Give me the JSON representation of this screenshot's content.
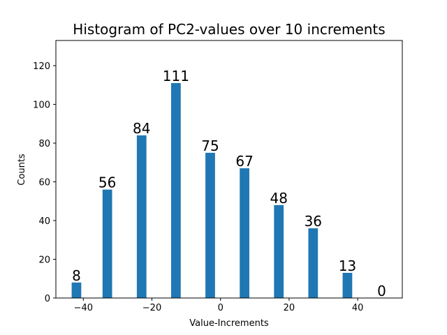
{
  "chart_data": {
    "type": "bar",
    "title": "Histogram of PC2-values over 10 increments",
    "xlabel": "Value-Increments",
    "ylabel": "Counts",
    "x": [
      -42,
      -33,
      -23,
      -13,
      -3,
      7,
      17,
      27,
      37,
      47
    ],
    "values": [
      8,
      56,
      84,
      111,
      75,
      67,
      48,
      36,
      13,
      0
    ],
    "value_labels": [
      "8",
      "56",
      "84",
      "111",
      "75",
      "67",
      "48",
      "36",
      "13",
      "0"
    ],
    "bar_width": 2.8,
    "xlim": [
      -48,
      53
    ],
    "ylim": [
      0,
      133
    ],
    "xticks": [
      -40,
      -20,
      0,
      20,
      40
    ],
    "xtick_labels": [
      "−40",
      "−20",
      "0",
      "20",
      "40"
    ],
    "yticks": [
      0,
      20,
      40,
      60,
      80,
      100,
      120
    ],
    "ytick_labels": [
      "0",
      "20",
      "40",
      "60",
      "80",
      "100",
      "120"
    ],
    "bar_color": "#1f77b4",
    "grid": false,
    "legend": "none"
  }
}
